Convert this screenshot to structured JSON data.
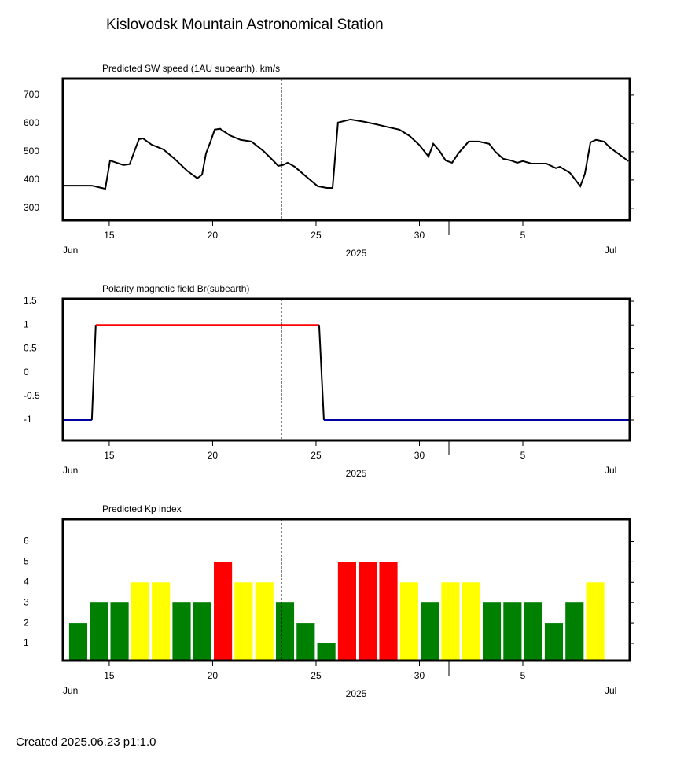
{
  "title": "Kislovodsk Mountain Astronomical Station",
  "footer": "Created  2025.06.23    p1:1.0",
  "chart_data": [
    {
      "type": "line",
      "title": "Predicted SW speed (1AU subearth), km/s",
      "color": "#000000",
      "x": [
        12.76,
        14.16,
        14.81,
        15.04,
        15.68,
        15.99,
        16.25,
        16.44,
        16.63,
        17.05,
        17.62,
        18.16,
        18.76,
        19.26,
        19.49,
        19.68,
        19.9,
        20.1,
        20.36,
        20.82,
        21.35,
        21.88,
        22.45,
        22.95,
        23.17,
        23.4,
        23.63,
        23.97,
        24.54,
        25.08,
        25.53,
        25.8,
        26.06,
        26.67,
        27.32,
        27.89,
        28.54,
        29.03,
        29.52,
        29.98,
        30.44,
        30.67,
        30.97,
        31.27,
        31.58,
        31.88,
        32.38,
        32.87,
        33.37,
        33.67,
        34.05,
        34.43,
        34.73,
        35,
        35.42,
        35.72,
        36.14,
        36.6,
        36.79,
        37.28,
        37.78,
        38.0,
        38.27,
        38.54,
        38.92,
        39.22,
        39.6,
        40.1
      ],
      "values": [
        380,
        380,
        369,
        469,
        453,
        456,
        508,
        544,
        547,
        525,
        508,
        475,
        433,
        406,
        419,
        494,
        536,
        578,
        581,
        558,
        542,
        536,
        503,
        467,
        450,
        453,
        461,
        447,
        411,
        378,
        372,
        372,
        603,
        614,
        606,
        597,
        586,
        578,
        556,
        525,
        483,
        528,
        503,
        469,
        461,
        494,
        536,
        536,
        528,
        500,
        475,
        469,
        461,
        467,
        458,
        458,
        458,
        442,
        447,
        425,
        378,
        422,
        533,
        542,
        536,
        514,
        494,
        467
      ],
      "xlim": [
        12.76,
        40.17
      ],
      "xticks": [
        15,
        20,
        25,
        30,
        {
          "value": 35,
          "label": "5"
        }
      ],
      "months": [
        "Jun",
        "Jul"
      ],
      "year": "2025",
      "ylim": [
        258,
        758
      ],
      "yticks": [
        300,
        400,
        500,
        600,
        700
      ]
    },
    {
      "type": "polarity",
      "title": "Polarity magnetic field  Br(subearth)",
      "color": "#000000",
      "positive_color": "#ff0000",
      "negative_color": "#0000a0",
      "x": [
        12.76,
        14.16,
        14.35,
        25.15,
        25.38,
        40.17
      ],
      "values": [
        -1,
        -1,
        1,
        1,
        -1,
        -1
      ],
      "xlim": [
        12.76,
        40.17
      ],
      "xticks": [
        15,
        20,
        25,
        30,
        {
          "value": 35,
          "label": "5"
        }
      ],
      "months": [
        "Jun",
        "Jul"
      ],
      "year": "2025",
      "ylim": [
        -1.43,
        1.55
      ],
      "yticks": [
        -1,
        -0.5,
        0,
        0.5,
        1,
        1.5
      ]
    },
    {
      "type": "bar",
      "title": "Predicted Kp index",
      "x": [
        13.5,
        14.5,
        15.5,
        16.5,
        17.5,
        18.5,
        19.5,
        20.5,
        21.5,
        22.5,
        23.5,
        24.5,
        25.5,
        26.5,
        27.5,
        28.5,
        29.5,
        30.5,
        31.5,
        32.5,
        33.5,
        34.5,
        35.5,
        36.5,
        37.5,
        38.5
      ],
      "values": [
        2,
        3,
        3,
        4,
        4,
        3,
        3,
        5,
        4,
        4,
        3,
        2,
        1,
        5,
        5,
        5,
        4,
        3,
        4,
        4,
        3,
        3,
        3,
        2,
        3,
        4
      ],
      "colors": [
        "#008000",
        "#008000",
        "#008000",
        "#ffff00",
        "#ffff00",
        "#008000",
        "#008000",
        "#ff0000",
        "#ffff00",
        "#ffff00",
        "#008000",
        "#008000",
        "#008000",
        "#ff0000",
        "#ff0000",
        "#ff0000",
        "#ffff00",
        "#008000",
        "#ffff00",
        "#ffff00",
        "#008000",
        "#008000",
        "#008000",
        "#008000",
        "#008000",
        "#ffff00"
      ],
      "xlim": [
        12.76,
        40.17
      ],
      "xticks": [
        15,
        20,
        25,
        30,
        {
          "value": 35,
          "label": "5"
        }
      ],
      "months": [
        "Jun",
        "Jul"
      ],
      "year": "2025",
      "ylim": [
        0.15,
        7.1
      ],
      "yticks": [
        1,
        2,
        3,
        4,
        5,
        6
      ]
    }
  ]
}
